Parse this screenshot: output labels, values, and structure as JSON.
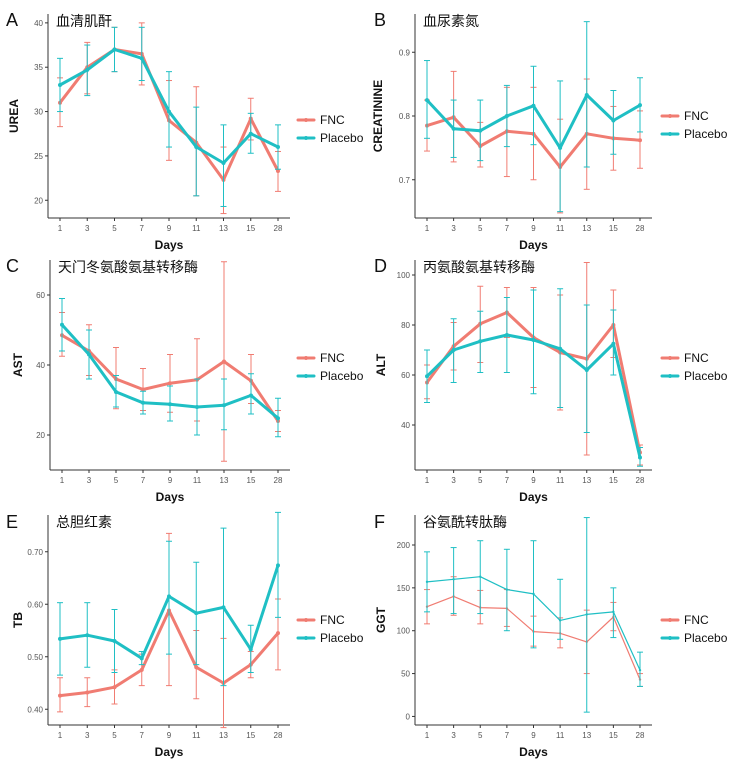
{
  "colors": {
    "fnc": "#F07C72",
    "placebo": "#1FBFC4"
  },
  "chart_data": [
    {
      "panel": "A",
      "title": "血清肌酐",
      "type": "line",
      "xlabel": "Days",
      "ylabel": "UREA",
      "categories": [
        "1",
        "3",
        "5",
        "7",
        "9",
        "11",
        "13",
        "15",
        "28"
      ],
      "ylim": [
        18,
        41
      ],
      "yticks": [
        20,
        25,
        30,
        35,
        40
      ],
      "series": [
        {
          "name": "FNC",
          "values": [
            31.0,
            35.0,
            37.0,
            36.5,
            29.0,
            26.5,
            22.3,
            29.2,
            23.3
          ],
          "lower": [
            28.3,
            32.0,
            34.5,
            33.0,
            24.5,
            20.5,
            18.5,
            26.8,
            21.0
          ],
          "upper": [
            33.8,
            37.8,
            39.5,
            40.0,
            33.5,
            32.8,
            26.0,
            31.5,
            25.5
          ]
        },
        {
          "name": "Placebo",
          "values": [
            33.0,
            34.7,
            37.0,
            36.0,
            30.0,
            26.0,
            24.2,
            27.5,
            26.0
          ],
          "lower": [
            30.0,
            31.8,
            34.5,
            33.5,
            26.0,
            20.5,
            19.3,
            25.3,
            23.5
          ],
          "upper": [
            36.0,
            37.5,
            39.5,
            39.5,
            34.5,
            30.5,
            28.5,
            29.8,
            28.5
          ]
        }
      ],
      "legend": [
        "FNC",
        "Placebo"
      ]
    },
    {
      "panel": "B",
      "title": "血尿素氮",
      "type": "line",
      "xlabel": "Days",
      "ylabel": "CREATININE",
      "categories": [
        "1",
        "3",
        "5",
        "7",
        "9",
        "11",
        "13",
        "15",
        "28"
      ],
      "ylim": [
        0.64,
        0.96
      ],
      "yticks": [
        0.7,
        0.8,
        0.9
      ],
      "series": [
        {
          "name": "FNC",
          "values": [
            0.785,
            0.798,
            0.753,
            0.776,
            0.772,
            0.72,
            0.772,
            0.765,
            0.762
          ],
          "lower": [
            0.745,
            0.728,
            0.72,
            0.705,
            0.7,
            0.648,
            0.685,
            0.715,
            0.718
          ],
          "upper": [
            0.825,
            0.87,
            0.79,
            0.845,
            0.845,
            0.795,
            0.858,
            0.815,
            0.808
          ]
        },
        {
          "name": "Placebo",
          "values": [
            0.825,
            0.78,
            0.777,
            0.8,
            0.816,
            0.75,
            0.833,
            0.793,
            0.817
          ],
          "lower": [
            0.765,
            0.735,
            0.73,
            0.752,
            0.755,
            0.65,
            0.72,
            0.74,
            0.775
          ],
          "upper": [
            0.887,
            0.825,
            0.825,
            0.848,
            0.878,
            0.855,
            0.948,
            0.84,
            0.86
          ]
        }
      ],
      "legend": [
        "FNC",
        "Placebo"
      ]
    },
    {
      "panel": "C",
      "title": "天门冬氨酸氨基转移酶",
      "type": "line",
      "xlabel": "Days",
      "ylabel": "AST",
      "categories": [
        "1",
        "3",
        "5",
        "7",
        "9",
        "11",
        "13",
        "15",
        "28"
      ],
      "ylim": [
        10,
        70
      ],
      "yticks": [
        20,
        40,
        60
      ],
      "series": [
        {
          "name": "FNC",
          "values": [
            48.5,
            44.0,
            36.0,
            33.0,
            34.8,
            35.8,
            41.0,
            35.5,
            24.0
          ],
          "lower": [
            42.5,
            37.0,
            27.5,
            27.0,
            26.5,
            24.0,
            12.5,
            29.0,
            21.0
          ],
          "upper": [
            55.0,
            51.5,
            45.0,
            39.0,
            43.0,
            47.5,
            69.5,
            43.0,
            27.0
          ]
        },
        {
          "name": "Placebo",
          "values": [
            51.5,
            43.0,
            32.3,
            29.2,
            28.8,
            28.0,
            28.5,
            31.3,
            24.8
          ],
          "lower": [
            44.0,
            36.0,
            28.0,
            26.0,
            24.0,
            20.0,
            21.5,
            26.0,
            19.5
          ],
          "upper": [
            59.0,
            50.0,
            37.0,
            32.5,
            34.0,
            36.0,
            36.0,
            37.5,
            30.5
          ]
        }
      ],
      "legend": [
        "FNC",
        "Placebo"
      ]
    },
    {
      "panel": "D",
      "title": "丙氨酸氨基转移酶",
      "type": "line",
      "xlabel": "Days",
      "ylabel": "ALT",
      "categories": [
        "1",
        "3",
        "5",
        "7",
        "9",
        "11",
        "13",
        "15",
        "28"
      ],
      "ylim": [
        22,
        106
      ],
      "yticks": [
        40,
        60,
        80,
        100
      ],
      "series": [
        {
          "name": "FNC",
          "values": [
            57.0,
            71.5,
            80.5,
            85.0,
            75.0,
            69.0,
            66.5,
            80.0,
            29.0
          ],
          "lower": [
            50.5,
            62.0,
            65.0,
            75.0,
            55.0,
            46.0,
            28.0,
            67.0,
            24.0
          ],
          "upper": [
            64.0,
            81.0,
            95.5,
            95.0,
            95.0,
            92.0,
            105.0,
            94.0,
            32.0
          ]
        },
        {
          "name": "Placebo",
          "values": [
            59.5,
            70.0,
            73.5,
            76.0,
            74.0,
            70.5,
            62.0,
            72.5,
            27.0
          ],
          "lower": [
            49.0,
            57.0,
            61.0,
            61.0,
            52.5,
            47.0,
            37.0,
            60.0,
            23.5
          ],
          "upper": [
            70.0,
            82.5,
            85.5,
            91.0,
            94.0,
            94.5,
            88.0,
            86.0,
            31.0
          ]
        }
      ],
      "legend": [
        "FNC",
        "Placebo"
      ]
    },
    {
      "panel": "E",
      "title": "总胆红素",
      "type": "line",
      "xlabel": "Days",
      "ylabel": "TB",
      "categories": [
        "1",
        "3",
        "5",
        "7",
        "9",
        "11",
        "13",
        "15",
        "28"
      ],
      "ylim": [
        0.37,
        0.77
      ],
      "yticks": [
        0.4,
        0.5,
        0.6,
        0.7
      ],
      "series": [
        {
          "name": "FNC",
          "values": [
            0.426,
            0.432,
            0.442,
            0.475,
            0.588,
            0.48,
            0.45,
            0.485,
            0.545
          ],
          "lower": [
            0.395,
            0.405,
            0.41,
            0.445,
            0.445,
            0.42,
            0.365,
            0.46,
            0.475
          ],
          "upper": [
            0.46,
            0.46,
            0.475,
            0.505,
            0.735,
            0.55,
            0.535,
            0.51,
            0.61
          ]
        },
        {
          "name": "Placebo",
          "values": [
            0.534,
            0.541,
            0.53,
            0.497,
            0.615,
            0.583,
            0.594,
            0.514,
            0.674
          ],
          "lower": [
            0.465,
            0.48,
            0.47,
            0.485,
            0.505,
            0.485,
            0.445,
            0.47,
            0.575
          ],
          "upper": [
            0.603,
            0.603,
            0.59,
            0.51,
            0.72,
            0.68,
            0.745,
            0.56,
            0.775
          ]
        }
      ],
      "legend": [
        "FNC",
        "Placebo"
      ]
    },
    {
      "panel": "F",
      "title": "谷氨酰转肽酶",
      "type": "line",
      "xlabel": "Days",
      "ylabel": "GGT",
      "categories": [
        "1",
        "3",
        "5",
        "7",
        "9",
        "11",
        "13",
        "15",
        "28"
      ],
      "ylim": [
        -10,
        235
      ],
      "yticks": [
        0,
        50,
        100,
        150,
        200
      ],
      "series": [
        {
          "name": "FNC",
          "values": [
            128,
            140,
            127,
            126,
            99,
            97,
            87,
            116,
            43
          ],
          "lower": [
            108,
            118,
            108,
            105,
            82,
            80,
            50,
            100,
            35
          ],
          "upper": [
            148,
            163,
            147,
            148,
            117,
            115,
            124,
            133,
            50
          ]
        },
        {
          "name": "Placebo",
          "values": [
            157,
            160,
            163,
            148,
            143,
            112,
            119,
            122,
            54
          ],
          "lower": [
            122,
            120,
            120,
            100,
            80,
            90,
            5,
            92,
            35
          ],
          "upper": [
            192,
            197,
            205,
            195,
            205,
            160,
            232,
            150,
            75
          ]
        }
      ],
      "legend": [
        "FNC",
        "Placebo"
      ]
    }
  ]
}
